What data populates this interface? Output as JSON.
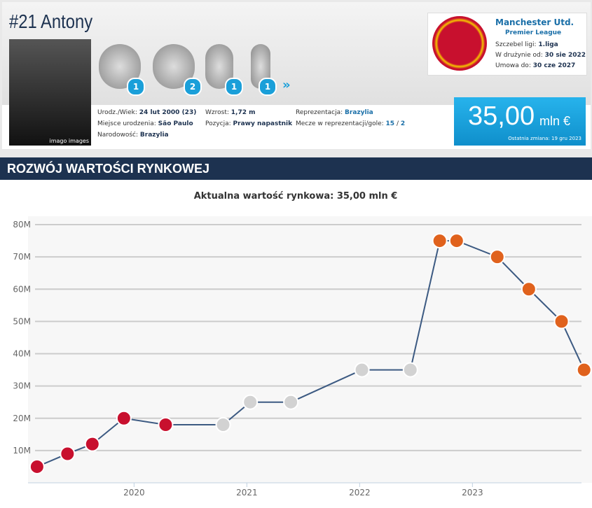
{
  "header": {
    "title": "#21 Antony",
    "photo_credit": "imago images",
    "trophies": [
      {
        "count": 1
      },
      {
        "count": 2
      },
      {
        "count": 1
      },
      {
        "count": 1
      }
    ],
    "bio": [
      {
        "label": "Urodz./Wiek:",
        "value": "24 lut 2000 (23)"
      },
      {
        "label": "Miejsce urodzenia:",
        "value": "São Paulo"
      },
      {
        "label": "Narodowość:",
        "value": "Brazylia"
      },
      {
        "label": "Wzrost:",
        "value": "1,72 m"
      },
      {
        "label": "Pozycja:",
        "value": "Prawy napastnik"
      },
      {
        "label": "Reprezentacja:",
        "value": "Brazylia"
      },
      {
        "label": "Mecze w reprezentacji/gole:",
        "value": "15",
        "separator": "/",
        "value2": "2"
      }
    ],
    "club": {
      "name": "Manchester Utd.",
      "league": "Premier League",
      "level_label": "Szczebel ligi:",
      "level": "1.liga",
      "joined_label": "W drużynie od:",
      "joined": "30 sie 2022",
      "contract_label": "Umowa do:",
      "contract": "30 cze 2027"
    },
    "market_value": {
      "amount": "35,00",
      "unit": "mln €",
      "last_change": "Ostatnia zmiana: 19 gru 2023"
    }
  },
  "section_title": "ROZWÓJ WARTOŚCI RYNKOWEJ",
  "chart_data": {
    "type": "line",
    "title": "Aktualna wartość rynkowa: 35,00 mln €",
    "x": [
      2019.14,
      2019.41,
      2019.63,
      2019.91,
      2020.28,
      2020.79,
      2021.03,
      2021.39,
      2022.02,
      2022.45,
      2022.71,
      2022.86,
      2023.22,
      2023.5,
      2023.79,
      2023.99
    ],
    "series": [
      {
        "color": "#3c5a82",
        "values": [
          5,
          9,
          12,
          20,
          18,
          18,
          25,
          25,
          35,
          35,
          75,
          75,
          70,
          60,
          50,
          35
        ],
        "marker_colors": [
          "#c8102e",
          "#c8102e",
          "#c8102e",
          "#c8102e",
          "#c8102e",
          "#d2d2d2",
          "#d2d2d2",
          "#d2d2d2",
          "#d2d2d2",
          "#d2d2d2",
          "#e0621d",
          "#e0621d",
          "#e0621d",
          "#e0621d",
          "#e0621d",
          "#e0621d"
        ]
      }
    ],
    "xlim": [
      2019.06,
      2024.06
    ],
    "xticks": [
      2020,
      2021,
      2022,
      2023
    ],
    "ylim": [
      0,
      80
    ],
    "yticks": [
      {
        "value": 10,
        "label": "10M"
      },
      {
        "value": 20,
        "label": "20M"
      },
      {
        "value": 30,
        "label": "30M"
      },
      {
        "value": 40,
        "label": "40M"
      },
      {
        "value": 50,
        "label": "50M"
      },
      {
        "value": 60,
        "label": "60M"
      },
      {
        "value": 70,
        "label": "70M"
      },
      {
        "value": 80,
        "label": "80M"
      }
    ],
    "grid": true
  }
}
